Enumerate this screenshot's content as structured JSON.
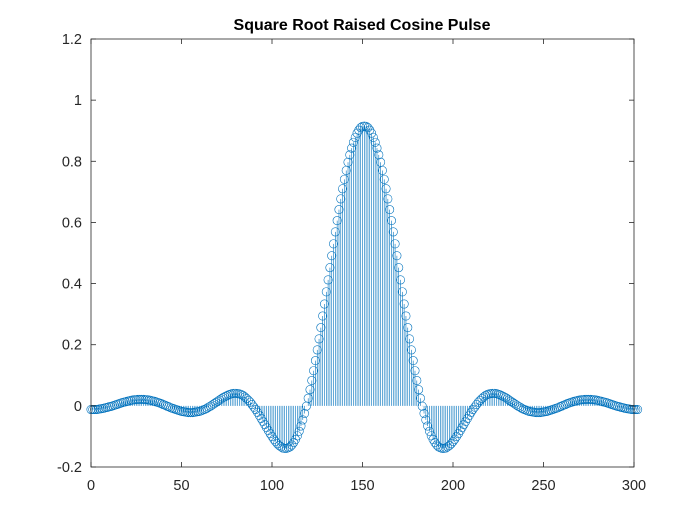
{
  "chart_data": {
    "type": "stem",
    "title": "Square Root Raised Cosine Pulse",
    "xlabel": "",
    "ylabel": "",
    "xlim": [
      0,
      300
    ],
    "ylim": [
      -0.2,
      1.2
    ],
    "xticks": [
      0,
      50,
      100,
      150,
      200,
      250,
      300
    ],
    "yticks": [
      -0.2,
      0,
      0.2,
      0.4,
      0.6,
      0.8,
      1,
      1.2
    ],
    "xtick_labels": [
      "0",
      "50",
      "100",
      "150",
      "200",
      "250",
      "300"
    ],
    "ytick_labels": [
      "-0.2",
      "0",
      "0.2",
      "0.4",
      "0.6",
      "0.8",
      "1",
      "1.2"
    ],
    "grid": false,
    "legend": "none",
    "color": "#0072bd",
    "x_start": 0,
    "x_step": 1,
    "series": [
      {
        "values": [
          -0.012,
          -0.012,
          -0.012,
          -0.012,
          -0.011,
          -0.01,
          -0.009,
          -0.008,
          -0.006,
          -0.005,
          -0.003,
          -0.002,
          0.0,
          0.002,
          0.004,
          0.006,
          0.008,
          0.01,
          0.012,
          0.013,
          0.015,
          0.016,
          0.018,
          0.019,
          0.02,
          0.02,
          0.021,
          0.021,
          0.021,
          0.021,
          0.02,
          0.02,
          0.019,
          0.018,
          0.016,
          0.015,
          0.013,
          0.011,
          0.009,
          0.007,
          0.004,
          0.002,
          -0.001,
          -0.003,
          -0.006,
          -0.008,
          -0.01,
          -0.012,
          -0.014,
          -0.016,
          -0.018,
          -0.019,
          -0.02,
          -0.021,
          -0.022,
          -0.022,
          -0.022,
          -0.021,
          -0.02,
          -0.019,
          -0.018,
          -0.016,
          -0.013,
          -0.011,
          -0.008,
          -0.004,
          -0.001,
          0.003,
          0.007,
          0.011,
          0.015,
          0.019,
          0.023,
          0.027,
          0.03,
          0.033,
          0.036,
          0.038,
          0.04,
          0.041,
          0.041,
          0.04,
          0.039,
          0.037,
          0.034,
          0.029,
          0.024,
          0.018,
          0.012,
          0.004,
          -0.004,
          -0.012,
          -0.021,
          -0.031,
          -0.041,
          -0.051,
          -0.061,
          -0.071,
          -0.081,
          -0.091,
          -0.1,
          -0.109,
          -0.117,
          -0.124,
          -0.13,
          -0.134,
          -0.138,
          -0.139,
          -0.139,
          -0.137,
          -0.134,
          -0.128,
          -0.12,
          -0.11,
          -0.098,
          -0.083,
          -0.066,
          -0.046,
          -0.025,
          -0.001,
          0.025,
          0.053,
          0.083,
          0.115,
          0.148,
          0.183,
          0.219,
          0.256,
          0.294,
          0.333,
          0.373,
          0.412,
          0.452,
          0.491,
          0.53,
          0.569,
          0.606,
          0.642,
          0.677,
          0.71,
          0.741,
          0.77,
          0.797,
          0.821,
          0.843,
          0.862,
          0.878,
          0.892,
          0.902,
          0.91,
          0.914,
          0.915,
          0.914,
          0.91,
          0.902,
          0.892,
          0.878,
          0.862,
          0.843,
          0.821,
          0.797,
          0.77,
          0.741,
          0.71,
          0.677,
          0.642,
          0.606,
          0.569,
          0.53,
          0.491,
          0.452,
          0.412,
          0.373,
          0.333,
          0.294,
          0.256,
          0.219,
          0.183,
          0.148,
          0.115,
          0.083,
          0.053,
          0.025,
          -0.001,
          -0.025,
          -0.046,
          -0.066,
          -0.083,
          -0.098,
          -0.11,
          -0.12,
          -0.128,
          -0.134,
          -0.137,
          -0.139,
          -0.139,
          -0.138,
          -0.134,
          -0.13,
          -0.124,
          -0.117,
          -0.109,
          -0.1,
          -0.091,
          -0.081,
          -0.071,
          -0.061,
          -0.051,
          -0.041,
          -0.031,
          -0.021,
          -0.012,
          -0.004,
          0.004,
          0.012,
          0.018,
          0.024,
          0.029,
          0.034,
          0.037,
          0.039,
          0.04,
          0.041,
          0.041,
          0.04,
          0.038,
          0.036,
          0.033,
          0.03,
          0.027,
          0.023,
          0.019,
          0.015,
          0.011,
          0.007,
          0.003,
          -0.001,
          -0.004,
          -0.008,
          -0.011,
          -0.013,
          -0.016,
          -0.018,
          -0.019,
          -0.02,
          -0.021,
          -0.022,
          -0.022,
          -0.022,
          -0.021,
          -0.02,
          -0.019,
          -0.018,
          -0.016,
          -0.014,
          -0.012,
          -0.01,
          -0.008,
          -0.006,
          -0.003,
          -0.001,
          0.002,
          0.004,
          0.007,
          0.009,
          0.011,
          0.013,
          0.015,
          0.016,
          0.018,
          0.019,
          0.02,
          0.02,
          0.021,
          0.021,
          0.021,
          0.021,
          0.02,
          0.02,
          0.019,
          0.018,
          0.016,
          0.015,
          0.013,
          0.012,
          0.01,
          0.008,
          0.006,
          0.004,
          0.002,
          0.0,
          -0.002,
          -0.003,
          -0.005,
          -0.006,
          -0.008,
          -0.009,
          -0.01,
          -0.011,
          -0.012,
          -0.012,
          -0.012,
          -0.012
        ]
      }
    ]
  }
}
